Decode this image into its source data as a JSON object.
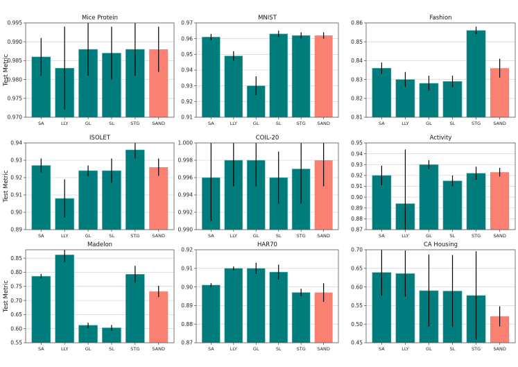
{
  "chart_data": [
    {
      "type": "bar",
      "title": "Mice Protein",
      "ylabel": "Test Metric",
      "xlabel": "",
      "categories": [
        "SA",
        "LLY",
        "GL",
        "SL",
        "STG",
        "SAND"
      ],
      "values": [
        0.986,
        0.983,
        0.988,
        0.987,
        0.988,
        0.988
      ],
      "errors": [
        0.005,
        0.011,
        0.007,
        0.007,
        0.007,
        0.006
      ],
      "ylim": [
        0.97,
        0.995
      ],
      "yticks": [
        "0.970",
        "0.975",
        "0.980",
        "0.985",
        "0.990",
        "0.995"
      ],
      "grid": true
    },
    {
      "type": "bar",
      "title": "MNIST",
      "ylabel": "",
      "xlabel": "",
      "categories": [
        "SA",
        "LLY",
        "GL",
        "SL",
        "STG",
        "SAND"
      ],
      "values": [
        0.961,
        0.949,
        0.93,
        0.963,
        0.962,
        0.962
      ],
      "errors": [
        0.002,
        0.003,
        0.006,
        0.002,
        0.002,
        0.002
      ],
      "ylim": [
        0.91,
        0.97
      ],
      "yticks": [
        "0.91",
        "0.92",
        "0.93",
        "0.94",
        "0.95",
        "0.96",
        "0.97"
      ],
      "grid": true
    },
    {
      "type": "bar",
      "title": "Fashion",
      "ylabel": "",
      "xlabel": "",
      "categories": [
        "SA",
        "LLY",
        "GL",
        "SL",
        "STG",
        "SAND"
      ],
      "values": [
        0.836,
        0.83,
        0.828,
        0.829,
        0.856,
        0.836
      ],
      "errors": [
        0.003,
        0.004,
        0.004,
        0.003,
        0.002,
        0.005
      ],
      "ylim": [
        0.81,
        0.86
      ],
      "yticks": [
        "0.81",
        "0.82",
        "0.83",
        "0.84",
        "0.85",
        "0.86"
      ],
      "grid": true
    },
    {
      "type": "bar",
      "title": "ISOLET",
      "ylabel": "Test Metric",
      "xlabel": "",
      "categories": [
        "SA",
        "LLY",
        "GL",
        "SL",
        "STG",
        "SAND"
      ],
      "values": [
        0.927,
        0.908,
        0.924,
        0.924,
        0.936,
        0.926
      ],
      "errors": [
        0.004,
        0.011,
        0.003,
        0.007,
        0.005,
        0.005
      ],
      "ylim": [
        0.89,
        0.94
      ],
      "yticks": [
        "0.89",
        "0.90",
        "0.91",
        "0.92",
        "0.93",
        "0.94"
      ],
      "grid": true
    },
    {
      "type": "bar",
      "title": "COIL-20",
      "ylabel": "",
      "xlabel": "",
      "categories": [
        "SA",
        "LLY",
        "GL",
        "SL",
        "STG",
        "SAND"
      ],
      "values": [
        0.996,
        0.998,
        0.998,
        0.996,
        0.997,
        0.998
      ],
      "errors": [
        0.005,
        0.003,
        0.003,
        0.003,
        0.004,
        0.003
      ],
      "ylim": [
        0.99,
        1.0
      ],
      "yticks": [
        "0.990",
        "0.992",
        "0.994",
        "0.996",
        "0.998",
        "1.000"
      ],
      "grid": true
    },
    {
      "type": "bar",
      "title": "Activity",
      "ylabel": "",
      "xlabel": "",
      "categories": [
        "SA",
        "LLY",
        "GL",
        "SL",
        "STG",
        "SAND"
      ],
      "values": [
        0.92,
        0.894,
        0.93,
        0.915,
        0.922,
        0.923
      ],
      "errors": [
        0.009,
        0.05,
        0.004,
        0.005,
        0.006,
        0.004
      ],
      "ylim": [
        0.87,
        0.95
      ],
      "yticks": [
        "0.87",
        "0.88",
        "0.89",
        "0.90",
        "0.91",
        "0.92",
        "0.93",
        "0.94",
        "0.95"
      ],
      "grid": true
    },
    {
      "type": "bar",
      "title": "Madelon",
      "ylabel": "Test Metric",
      "xlabel": "",
      "categories": [
        "SA",
        "LLY",
        "GL",
        "SL",
        "STG",
        "SAND"
      ],
      "values": [
        0.786,
        0.862,
        0.612,
        0.603,
        0.793,
        0.732
      ],
      "errors": [
        0.008,
        0.026,
        0.009,
        0.01,
        0.03,
        0.02
      ],
      "ylim": [
        0.55,
        0.88
      ],
      "yticks": [
        "0.55",
        "0.60",
        "0.65",
        "0.70",
        "0.75",
        "0.80",
        "0.85"
      ],
      "grid": true
    },
    {
      "type": "bar",
      "title": "HAR70",
      "ylabel": "",
      "xlabel": "",
      "categories": [
        "SA",
        "LLY",
        "GL",
        "SL",
        "STG",
        "SAND"
      ],
      "values": [
        0.901,
        0.91,
        0.91,
        0.908,
        0.897,
        0.897
      ],
      "errors": [
        0.001,
        0.001,
        0.003,
        0.004,
        0.002,
        0.005
      ],
      "ylim": [
        0.87,
        0.92
      ],
      "yticks": [
        "0.87",
        "0.88",
        "0.89",
        "0.90",
        "0.91",
        "0.92"
      ],
      "grid": true
    },
    {
      "type": "bar",
      "title": "CA Housing",
      "ylabel": "",
      "xlabel": "",
      "categories": [
        "SA",
        "LLY",
        "GL",
        "SL",
        "STG",
        "SAND"
      ],
      "values": [
        0.639,
        0.636,
        0.59,
        0.589,
        0.577,
        0.521
      ],
      "errors": [
        0.062,
        0.062,
        0.097,
        0.097,
        0.119,
        0.027
      ],
      "ylim": [
        0.45,
        0.7
      ],
      "yticks": [
        "0.45",
        "0.50",
        "0.55",
        "0.60",
        "0.65",
        "0.70"
      ],
      "grid": true
    }
  ],
  "colors": {
    "baseline_bar": "#007c7c",
    "highlight_bar": "#fa8072",
    "error_bar": "#000000"
  },
  "highlight_category": "SAND"
}
